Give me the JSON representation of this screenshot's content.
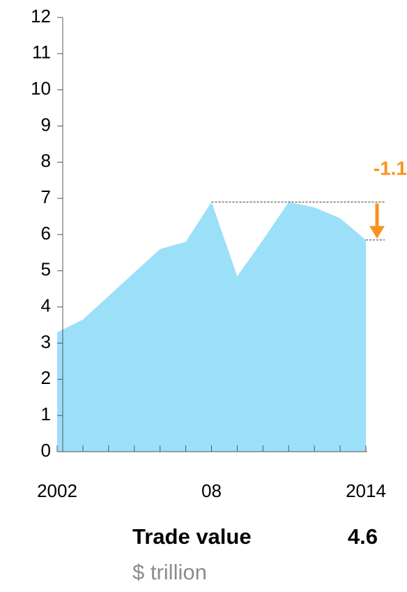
{
  "chart_data": {
    "type": "area",
    "categories": [
      "2002",
      null,
      null,
      null,
      null,
      null,
      "08",
      null,
      null,
      null,
      null,
      null,
      "2014"
    ],
    "values": [
      3.3,
      3.65,
      4.3,
      4.95,
      5.6,
      5.8,
      6.9,
      4.85,
      5.85,
      6.9,
      6.75,
      6.45,
      5.85
    ],
    "color": "#9cdff8",
    "ylim": [
      0,
      12
    ],
    "yticks": [
      0,
      1,
      2,
      3,
      4,
      5,
      6,
      7,
      8,
      9,
      10,
      11,
      12
    ],
    "annotation": "-1.1",
    "annotation_color": "#f7931e",
    "label": "Trade value",
    "value": 4.6,
    "unit": "$ trillion"
  }
}
